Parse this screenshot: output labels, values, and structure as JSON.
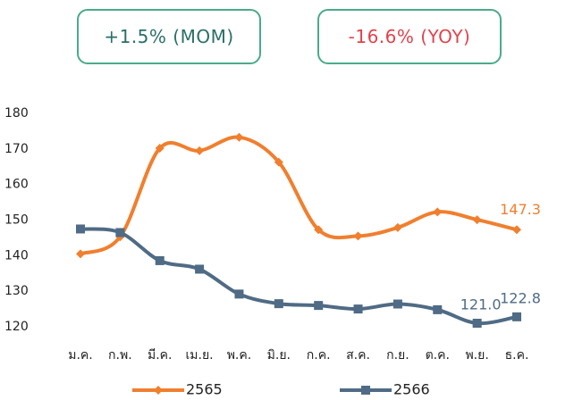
{
  "badges": [
    {
      "text": "+1.5% (MOM)",
      "color": "#2b6f6a"
    },
    {
      "text": "-16.6% (YOY)",
      "color": "#e2434d"
    }
  ],
  "chart_data": {
    "type": "line",
    "categories": [
      "ม.ค.",
      "ก.พ.",
      "มี.ค.",
      "เม.ย.",
      "พ.ค.",
      "มิ.ย.",
      "ก.ค.",
      "ส.ค.",
      "ก.ย.",
      "ต.ค.",
      "พ.ย.",
      "ธ.ค."
    ],
    "series": [
      {
        "name": "2565",
        "color": "#f07f2e",
        "marker": "diamond",
        "values": [
          140.5,
          145.3,
          170.2,
          169.5,
          173.3,
          166.3,
          147.3,
          145.5,
          147.9,
          152.3,
          150.1,
          147.3
        ],
        "value_labels": [
          null,
          null,
          null,
          null,
          null,
          null,
          null,
          null,
          null,
          null,
          null,
          "147.3"
        ]
      },
      {
        "name": "2566",
        "color": "#4f6b85",
        "marker": "square",
        "values": [
          147.5,
          146.5,
          138.6,
          136.2,
          129.2,
          126.5,
          126.0,
          125.0,
          126.4,
          124.8,
          121.0,
          122.8
        ],
        "value_labels": [
          null,
          null,
          null,
          null,
          null,
          null,
          null,
          null,
          null,
          null,
          "121.0",
          "122.8"
        ]
      }
    ],
    "ylim": [
      120,
      180
    ],
    "yticks": [
      120,
      130,
      140,
      150,
      160,
      170,
      180
    ],
    "grid": false,
    "legend": "bottom"
  }
}
